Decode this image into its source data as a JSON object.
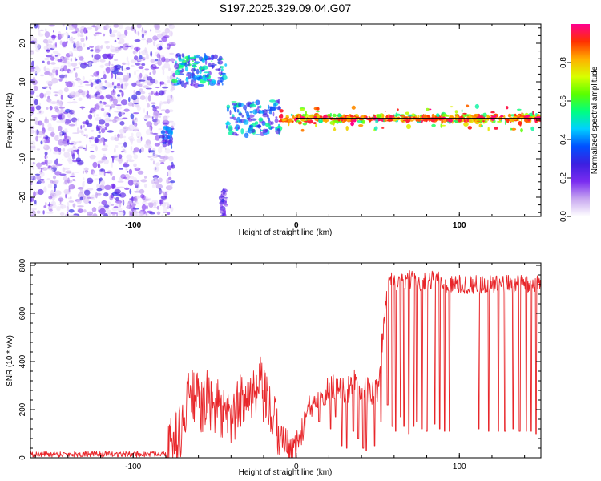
{
  "title": "S197.2025.329.09.04.G07",
  "colors": {
    "background": "#ffffff",
    "axis": "#000000",
    "snr_line": "#e8262a",
    "line_of_sight": "#000000"
  },
  "chart_data": [
    {
      "type": "heatmap",
      "name": "spectrogram",
      "xlabel": "Height of straight line (km)",
      "ylabel": "Frequency (Hz)",
      "xlim": [
        -163,
        150
      ],
      "ylim": [
        -25,
        25
      ],
      "xticks": [
        -100,
        0,
        100
      ],
      "xtick_labels": [
        "-100",
        "0",
        "100"
      ],
      "yticks": [
        -20,
        -10,
        0,
        10,
        20
      ],
      "ytick_labels": [
        "-20",
        "-10",
        "0",
        "10",
        "20"
      ],
      "reference_line": {
        "freq": 0.5,
        "x_start": 0,
        "x_end": 150
      },
      "colorbar": {
        "label": "Normalized spectral amplitude",
        "range": [
          0,
          1
        ],
        "ticks": [
          0.0,
          0.2,
          0.4,
          0.6,
          0.8
        ],
        "tick_labels": [
          "0.0",
          "0.2",
          "0.4",
          "0.6",
          "0.8"
        ],
        "colormap": [
          "#ffffff",
          "#c8a8f0",
          "#7a2cf0",
          "#3c1fe0",
          "#0050ff",
          "#00d0ff",
          "#00ff80",
          "#5aff00",
          "#d8ff00",
          "#ffb000",
          "#ff3000",
          "#ff0090"
        ]
      },
      "regions": [
        {
          "desc": "scattered noise",
          "x": [
            -163,
            -75
          ],
          "f": [
            -25,
            25
          ],
          "amp": [
            0.03,
            0.3
          ]
        },
        {
          "desc": "high-frequency cluster",
          "x": [
            -75,
            -43
          ],
          "f": [
            9,
            17
          ],
          "amp": [
            0.2,
            0.6
          ]
        },
        {
          "desc": "leading fragment",
          "x": [
            -82,
            -76
          ],
          "f": [
            -7,
            -2
          ],
          "amp": [
            0.15,
            0.45
          ]
        },
        {
          "desc": "tail fragment",
          "x": [
            -46,
            -43
          ],
          "f": [
            -25,
            -18
          ],
          "amp": [
            0.1,
            0.3
          ]
        },
        {
          "desc": "transition",
          "x": [
            -43,
            -10
          ],
          "f": [
            -4,
            5
          ],
          "amp": [
            0.2,
            0.55
          ]
        },
        {
          "desc": "main signal",
          "x": [
            -10,
            150
          ],
          "f": [
            -1,
            2
          ],
          "amp": [
            0.5,
            1.0
          ]
        }
      ]
    },
    {
      "type": "line",
      "name": "snr",
      "xlabel": "Height of straight line (km)",
      "ylabel": "SNR (10 * v/v)",
      "xlim": [
        -163,
        150
      ],
      "ylim": [
        0,
        810
      ],
      "xticks": [
        -100,
        0,
        100
      ],
      "xtick_labels": [
        "-100",
        "0",
        "100"
      ],
      "yticks": [
        0,
        200,
        400,
        600,
        800
      ],
      "ytick_labels": [
        "0",
        "200",
        "400",
        "600",
        "800"
      ],
      "series": [
        {
          "name": "SNR",
          "x": [
            -163,
            -120,
            -90,
            -80,
            -70,
            -65,
            -62,
            -58,
            -55,
            -52,
            -50,
            -48,
            -46,
            -44,
            -40,
            -36,
            -33,
            -30,
            -28,
            -25,
            -22,
            -20,
            -17,
            -15,
            -12,
            -10,
            -8,
            -5,
            -3,
            0,
            3,
            6,
            10,
            15,
            18,
            22,
            25,
            30,
            35,
            40,
            45,
            48,
            50,
            52,
            55,
            57,
            60,
            70,
            80,
            85,
            90,
            100,
            110,
            120,
            130,
            140,
            150
          ],
          "y": [
            15,
            15,
            15,
            20,
            120,
            280,
            250,
            200,
            260,
            200,
            220,
            220,
            180,
            160,
            150,
            200,
            250,
            300,
            250,
            240,
            300,
            250,
            200,
            180,
            120,
            100,
            80,
            60,
            40,
            50,
            90,
            180,
            220,
            290,
            270,
            300,
            300,
            270,
            320,
            290,
            270,
            260,
            300,
            450,
            650,
            770,
            720,
            740,
            730,
            750,
            720,
            720,
            720,
            720,
            720,
            730,
            720
          ]
        }
      ],
      "noise_amplitude": [
        {
          "x": [
            -163,
            -80
          ],
          "amp": 12
        },
        {
          "x": [
            -80,
            -10
          ],
          "amp": 120
        },
        {
          "x": [
            -10,
            55
          ],
          "amp": 60
        },
        {
          "x": [
            55,
            150
          ],
          "amp": 40
        }
      ],
      "dropouts": {
        "x": [
          14,
          17,
          21,
          24,
          28,
          31,
          35,
          38,
          41,
          43,
          48,
          52,
          56,
          59,
          61,
          64,
          66,
          69,
          72,
          74,
          77,
          80,
          85,
          88,
          91,
          94,
          112,
          118,
          124,
          128,
          133,
          137,
          141,
          144,
          147
        ],
        "min_values": [
          150,
          220,
          120,
          170,
          50,
          40,
          110,
          80,
          40,
          30,
          50,
          150,
          220,
          130,
          110,
          170,
          130,
          100,
          130,
          150,
          120,
          110,
          140,
          120,
          110,
          110,
          120,
          110,
          110,
          110,
          120,
          110,
          110,
          110,
          100
        ]
      }
    }
  ]
}
